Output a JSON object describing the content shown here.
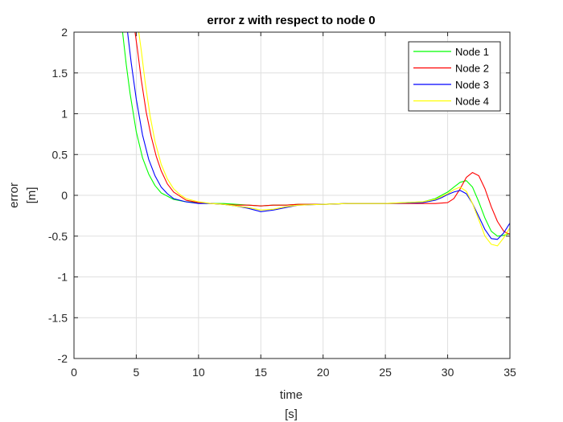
{
  "chart_data": {
    "type": "line",
    "title": "error z with respect to node 0",
    "xlabel": [
      "time",
      "[s]"
    ],
    "ylabel": [
      "error",
      "[m]"
    ],
    "xlim": [
      0,
      35
    ],
    "ylim": [
      -2,
      2
    ],
    "xticks": [
      0,
      5,
      10,
      15,
      20,
      25,
      30,
      35
    ],
    "yticks": [
      -2,
      -1.5,
      -1,
      -0.5,
      0,
      0.5,
      1,
      1.5,
      2
    ],
    "xtick_labels": [
      "0",
      "5",
      "10",
      "15",
      "20",
      "25",
      "30",
      "35"
    ],
    "ytick_labels": [
      "-2",
      "-1.5",
      "-1",
      "-0.5",
      "0",
      "0.5",
      "1",
      "1.5",
      "2"
    ],
    "grid": true,
    "legend_position": "top-right",
    "series": [
      {
        "name": "Node 1",
        "color": "#00ff00",
        "x": [
          3.9,
          4.2,
          4.5,
          5,
          5.5,
          6,
          6.5,
          7,
          8,
          9,
          10,
          11,
          12,
          13,
          14,
          15,
          16,
          17,
          18,
          20,
          22,
          25,
          28,
          29,
          30,
          30.5,
          31,
          31.5,
          32,
          32.5,
          33,
          33.5,
          34,
          34.5,
          35
        ],
        "y": [
          2.0,
          1.6,
          1.25,
          0.78,
          0.46,
          0.26,
          0.12,
          0.03,
          -0.05,
          -0.08,
          -0.09,
          -0.1,
          -0.1,
          -0.11,
          -0.12,
          -0.13,
          -0.12,
          -0.12,
          -0.11,
          -0.11,
          -0.1,
          -0.1,
          -0.08,
          -0.04,
          0.04,
          0.1,
          0.16,
          0.18,
          0.1,
          -0.08,
          -0.28,
          -0.44,
          -0.5,
          -0.49,
          -0.47
        ]
      },
      {
        "name": "Node 2",
        "color": "#ff0000",
        "x": [
          4.9,
          5.1,
          5.4,
          5.8,
          6.2,
          6.6,
          7,
          7.5,
          8,
          9,
          10,
          11,
          12,
          13,
          14,
          15,
          16,
          17,
          18,
          20,
          22,
          25,
          28,
          29,
          30,
          30.5,
          31,
          31.5,
          32,
          32.5,
          33,
          33.5,
          34,
          34.5,
          35
        ],
        "y": [
          2.0,
          1.78,
          1.42,
          1.02,
          0.72,
          0.48,
          0.3,
          0.14,
          0.04,
          -0.06,
          -0.09,
          -0.1,
          -0.11,
          -0.12,
          -0.12,
          -0.13,
          -0.12,
          -0.12,
          -0.11,
          -0.11,
          -0.1,
          -0.1,
          -0.1,
          -0.1,
          -0.09,
          -0.04,
          0.08,
          0.22,
          0.28,
          0.24,
          0.08,
          -0.14,
          -0.32,
          -0.44,
          -0.48
        ]
      },
      {
        "name": "Node 3",
        "color": "#0000ff",
        "x": [
          4.3,
          4.6,
          5,
          5.5,
          6,
          6.5,
          7,
          7.5,
          8,
          9,
          10,
          11,
          12,
          13,
          14,
          15,
          16,
          17,
          18,
          20,
          22,
          25,
          28,
          29,
          29.5,
          30,
          30.5,
          31,
          31.5,
          32,
          32.5,
          33,
          33.5,
          34,
          34.5,
          35
        ],
        "y": [
          2.0,
          1.62,
          1.18,
          0.74,
          0.44,
          0.24,
          0.1,
          0.02,
          -0.04,
          -0.08,
          -0.1,
          -0.1,
          -0.11,
          -0.13,
          -0.16,
          -0.2,
          -0.18,
          -0.15,
          -0.12,
          -0.11,
          -0.1,
          -0.1,
          -0.09,
          -0.06,
          -0.03,
          0.01,
          0.04,
          0.06,
          0.02,
          -0.1,
          -0.26,
          -0.42,
          -0.53,
          -0.54,
          -0.46,
          -0.34
        ]
      },
      {
        "name": "Node 4",
        "color": "#ffff00",
        "x": [
          5.2,
          5.4,
          5.7,
          6.1,
          6.5,
          7,
          7.5,
          8,
          8.5,
          9,
          10,
          11,
          12,
          13,
          14,
          15,
          16,
          17,
          18,
          20,
          22,
          25,
          28,
          29,
          30,
          30.5,
          31,
          31.5,
          32,
          32.5,
          33,
          33.5,
          34,
          34.5,
          35
        ],
        "y": [
          2.0,
          1.78,
          1.4,
          0.98,
          0.66,
          0.38,
          0.2,
          0.08,
          0.01,
          -0.04,
          -0.08,
          -0.1,
          -0.11,
          -0.13,
          -0.15,
          -0.18,
          -0.17,
          -0.14,
          -0.12,
          -0.11,
          -0.1,
          -0.1,
          -0.08,
          -0.05,
          0.02,
          0.07,
          0.1,
          0.05,
          -0.1,
          -0.3,
          -0.5,
          -0.6,
          -0.62,
          -0.52,
          -0.4
        ]
      }
    ]
  }
}
